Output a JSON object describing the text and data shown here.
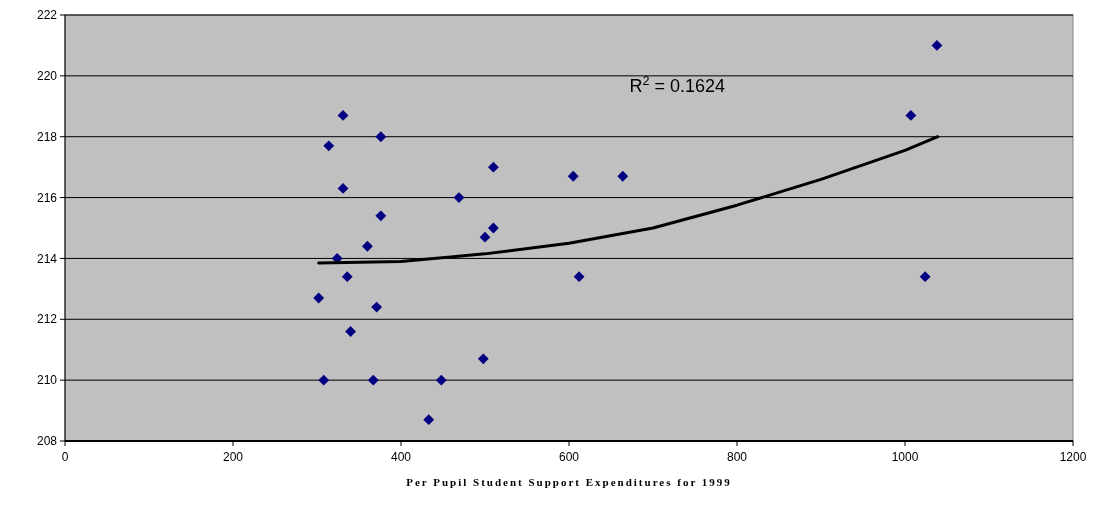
{
  "chart_data": {
    "type": "scatter",
    "xlabel": "Per Pupil Student Support Expenditures for 1999",
    "xlim": [
      0,
      1200
    ],
    "xticks": [
      0,
      200,
      400,
      600,
      800,
      1000,
      1200
    ],
    "ylim": [
      208,
      222
    ],
    "yticks": [
      208,
      210,
      212,
      214,
      216,
      218,
      220,
      222
    ],
    "grid": "y",
    "marker": "diamond",
    "annotations": [
      "R$^{2}$ = 0.1624"
    ],
    "series": [
      {
        "color": "#000080",
        "x": [
          302,
          308,
          314,
          324,
          331,
          331,
          336,
          340,
          360,
          367,
          371,
          376,
          376,
          433,
          448,
          469,
          498,
          500,
          510,
          510,
          605,
          612,
          664,
          1007,
          1024,
          1038
        ],
        "values": [
          212.7,
          210.0,
          217.7,
          214.0,
          218.7,
          216.3,
          213.4,
          211.6,
          214.4,
          210.0,
          212.4,
          218.0,
          215.4,
          208.7,
          210.0,
          216.0,
          210.7,
          214.7,
          215.0,
          217.0,
          216.7,
          213.4,
          216.7,
          218.7,
          213.4,
          221.0
        ]
      },
      {
        "type": "line",
        "color": "#000000",
        "marker": "none",
        "x": [
          302,
          400,
          500,
          600,
          700,
          800,
          900,
          1000,
          1039
        ],
        "values": [
          213.85,
          213.9,
          214.15,
          214.5,
          215.0,
          215.75,
          216.6,
          217.55,
          218.0
        ]
      }
    ]
  }
}
